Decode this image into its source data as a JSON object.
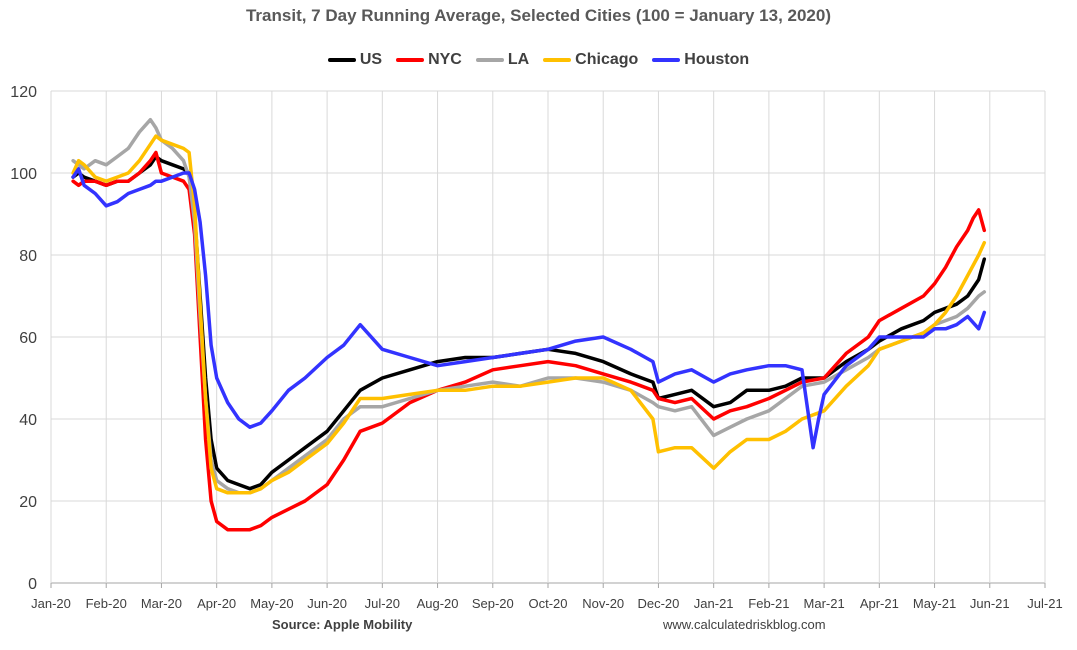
{
  "chart_data": {
    "type": "line",
    "title": "Transit, 7 Day Running Average, Selected Cities (100 = January 13, 2020)",
    "xlabel": "",
    "ylabel": "",
    "ylim": [
      0,
      120
    ],
    "yticks": [
      0,
      20,
      40,
      60,
      80,
      100,
      120
    ],
    "xlim": [
      0,
      18
    ],
    "xtick_labels": [
      "Jan-20",
      "Feb-20",
      "Mar-20",
      "Apr-20",
      "May-20",
      "Jun-20",
      "Jul-20",
      "Aug-20",
      "Sep-20",
      "Oct-20",
      "Nov-20",
      "Dec-20",
      "Jan-21",
      "Feb-21",
      "Mar-21",
      "Apr-21",
      "May-21",
      "Jun-21",
      "Jul-21"
    ],
    "grid": true,
    "legend_position": "top-center",
    "series": [
      {
        "name": "US",
        "color": "#000000",
        "x": [
          0.4,
          0.5,
          0.6,
          0.8,
          1.0,
          1.2,
          1.4,
          1.6,
          1.8,
          1.9,
          2.0,
          2.2,
          2.4,
          2.5,
          2.6,
          2.7,
          2.8,
          2.9,
          3.0,
          3.2,
          3.4,
          3.6,
          3.8,
          4.0,
          4.3,
          4.6,
          5.0,
          5.3,
          5.6,
          6.0,
          6.5,
          7.0,
          7.5,
          8.0,
          8.5,
          9.0,
          9.5,
          10.0,
          10.5,
          10.9,
          11.0,
          11.3,
          11.6,
          12.0,
          12.3,
          12.6,
          13.0,
          13.3,
          13.6,
          14.0,
          14.4,
          14.8,
          15.0,
          15.4,
          15.8,
          16.0,
          16.2,
          16.4,
          16.6,
          16.8,
          16.9
        ],
        "y": [
          99,
          100,
          99,
          98,
          97,
          98,
          98,
          100,
          102,
          104,
          103,
          102,
          101,
          100,
          90,
          70,
          50,
          35,
          28,
          25,
          24,
          23,
          24,
          27,
          30,
          33,
          37,
          42,
          47,
          50,
          52,
          54,
          55,
          55,
          56,
          57,
          56,
          54,
          51,
          49,
          45,
          46,
          47,
          43,
          44,
          47,
          47,
          48,
          50,
          50,
          54,
          57,
          59,
          62,
          64,
          66,
          67,
          68,
          70,
          74,
          79
        ]
      },
      {
        "name": "NYC",
        "color": "#ff0000",
        "x": [
          0.4,
          0.5,
          0.6,
          0.8,
          1.0,
          1.2,
          1.4,
          1.6,
          1.8,
          1.9,
          2.0,
          2.2,
          2.4,
          2.5,
          2.6,
          2.7,
          2.8,
          2.9,
          3.0,
          3.2,
          3.4,
          3.6,
          3.8,
          4.0,
          4.3,
          4.6,
          5.0,
          5.3,
          5.6,
          6.0,
          6.5,
          7.0,
          7.5,
          8.0,
          8.5,
          9.0,
          9.5,
          10.0,
          10.5,
          10.9,
          11.0,
          11.3,
          11.6,
          12.0,
          12.3,
          12.6,
          13.0,
          13.3,
          13.6,
          14.0,
          14.4,
          14.8,
          15.0,
          15.4,
          15.8,
          16.0,
          16.2,
          16.4,
          16.6,
          16.7,
          16.8,
          16.9
        ],
        "y": [
          98,
          97,
          98,
          98,
          97,
          98,
          98,
          100,
          103,
          105,
          100,
          99,
          98,
          96,
          85,
          60,
          35,
          20,
          15,
          13,
          13,
          13,
          14,
          16,
          18,
          20,
          24,
          30,
          37,
          39,
          44,
          47,
          49,
          52,
          53,
          54,
          53,
          51,
          49,
          47,
          45,
          44,
          45,
          40,
          42,
          43,
          45,
          47,
          49,
          50,
          56,
          60,
          64,
          67,
          70,
          73,
          77,
          82,
          86,
          89,
          91,
          86
        ]
      },
      {
        "name": "LA",
        "color": "#a6a6a6",
        "x": [
          0.4,
          0.5,
          0.6,
          0.8,
          1.0,
          1.2,
          1.4,
          1.6,
          1.8,
          1.9,
          2.0,
          2.2,
          2.4,
          2.5,
          2.6,
          2.7,
          2.8,
          2.9,
          3.0,
          3.2,
          3.4,
          3.6,
          3.8,
          4.0,
          4.3,
          4.6,
          5.0,
          5.3,
          5.6,
          6.0,
          6.5,
          7.0,
          7.5,
          8.0,
          8.5,
          9.0,
          9.5,
          10.0,
          10.5,
          10.9,
          11.0,
          11.3,
          11.6,
          12.0,
          12.3,
          12.6,
          13.0,
          13.3,
          13.6,
          14.0,
          14.4,
          14.8,
          15.0,
          15.4,
          15.8,
          16.0,
          16.2,
          16.4,
          16.6,
          16.8,
          16.9
        ],
        "y": [
          103,
          102,
          101,
          103,
          102,
          104,
          106,
          110,
          113,
          111,
          108,
          106,
          103,
          99,
          88,
          65,
          45,
          30,
          25,
          23,
          22,
          22,
          23,
          25,
          28,
          31,
          35,
          40,
          43,
          43,
          45,
          47,
          48,
          49,
          48,
          50,
          50,
          49,
          47,
          44,
          43,
          42,
          43,
          36,
          38,
          40,
          42,
          45,
          48,
          49,
          52,
          55,
          57,
          59,
          61,
          63,
          64,
          65,
          67,
          70,
          71
        ]
      },
      {
        "name": "Chicago",
        "color": "#ffc000",
        "x": [
          0.4,
          0.5,
          0.6,
          0.8,
          1.0,
          1.2,
          1.4,
          1.6,
          1.8,
          1.9,
          2.0,
          2.2,
          2.4,
          2.5,
          2.6,
          2.7,
          2.8,
          2.9,
          3.0,
          3.2,
          3.4,
          3.6,
          3.8,
          4.0,
          4.3,
          4.6,
          5.0,
          5.3,
          5.6,
          6.0,
          6.5,
          7.0,
          7.5,
          8.0,
          8.5,
          9.0,
          9.5,
          10.0,
          10.5,
          10.9,
          11.0,
          11.3,
          11.6,
          12.0,
          12.3,
          12.6,
          13.0,
          13.3,
          13.6,
          14.0,
          14.4,
          14.8,
          15.0,
          15.4,
          15.8,
          16.0,
          16.2,
          16.4,
          16.6,
          16.8,
          16.9
        ],
        "y": [
          100,
          103,
          102,
          99,
          98,
          99,
          100,
          103,
          107,
          109,
          108,
          107,
          106,
          105,
          92,
          68,
          45,
          28,
          23,
          22,
          22,
          22,
          23,
          25,
          27,
          30,
          34,
          39,
          45,
          45,
          46,
          47,
          47,
          48,
          48,
          49,
          50,
          50,
          47,
          40,
          32,
          33,
          33,
          28,
          32,
          35,
          35,
          37,
          40,
          42,
          48,
          53,
          57,
          59,
          61,
          63,
          66,
          70,
          75,
          80,
          83
        ]
      },
      {
        "name": "Houston",
        "color": "#3333ff",
        "x": [
          0.4,
          0.5,
          0.6,
          0.8,
          1.0,
          1.2,
          1.4,
          1.6,
          1.8,
          1.9,
          2.0,
          2.2,
          2.4,
          2.5,
          2.6,
          2.7,
          2.8,
          2.9,
          3.0,
          3.2,
          3.4,
          3.6,
          3.8,
          4.0,
          4.3,
          4.6,
          5.0,
          5.3,
          5.6,
          6.0,
          6.5,
          7.0,
          7.5,
          8.0,
          8.5,
          9.0,
          9.5,
          10.0,
          10.5,
          10.9,
          11.0,
          11.3,
          11.6,
          12.0,
          12.3,
          12.6,
          13.0,
          13.3,
          13.6,
          13.8,
          13.9,
          14.0,
          14.4,
          14.8,
          15.0,
          15.4,
          15.8,
          16.0,
          16.2,
          16.4,
          16.6,
          16.8,
          16.9
        ],
        "y": [
          99,
          101,
          97,
          95,
          92,
          93,
          95,
          96,
          97,
          98,
          98,
          99,
          100,
          100,
          96,
          88,
          75,
          58,
          50,
          44,
          40,
          38,
          39,
          42,
          47,
          50,
          55,
          58,
          63,
          57,
          55,
          53,
          54,
          55,
          56,
          57,
          59,
          60,
          57,
          54,
          49,
          51,
          52,
          49,
          51,
          52,
          53,
          53,
          52,
          33,
          40,
          46,
          53,
          57,
          60,
          60,
          60,
          62,
          62,
          63,
          65,
          62,
          66
        ]
      }
    ]
  },
  "footer": {
    "source": "Source: Apple Mobility",
    "website": "www.calculatedriskblog.com"
  }
}
